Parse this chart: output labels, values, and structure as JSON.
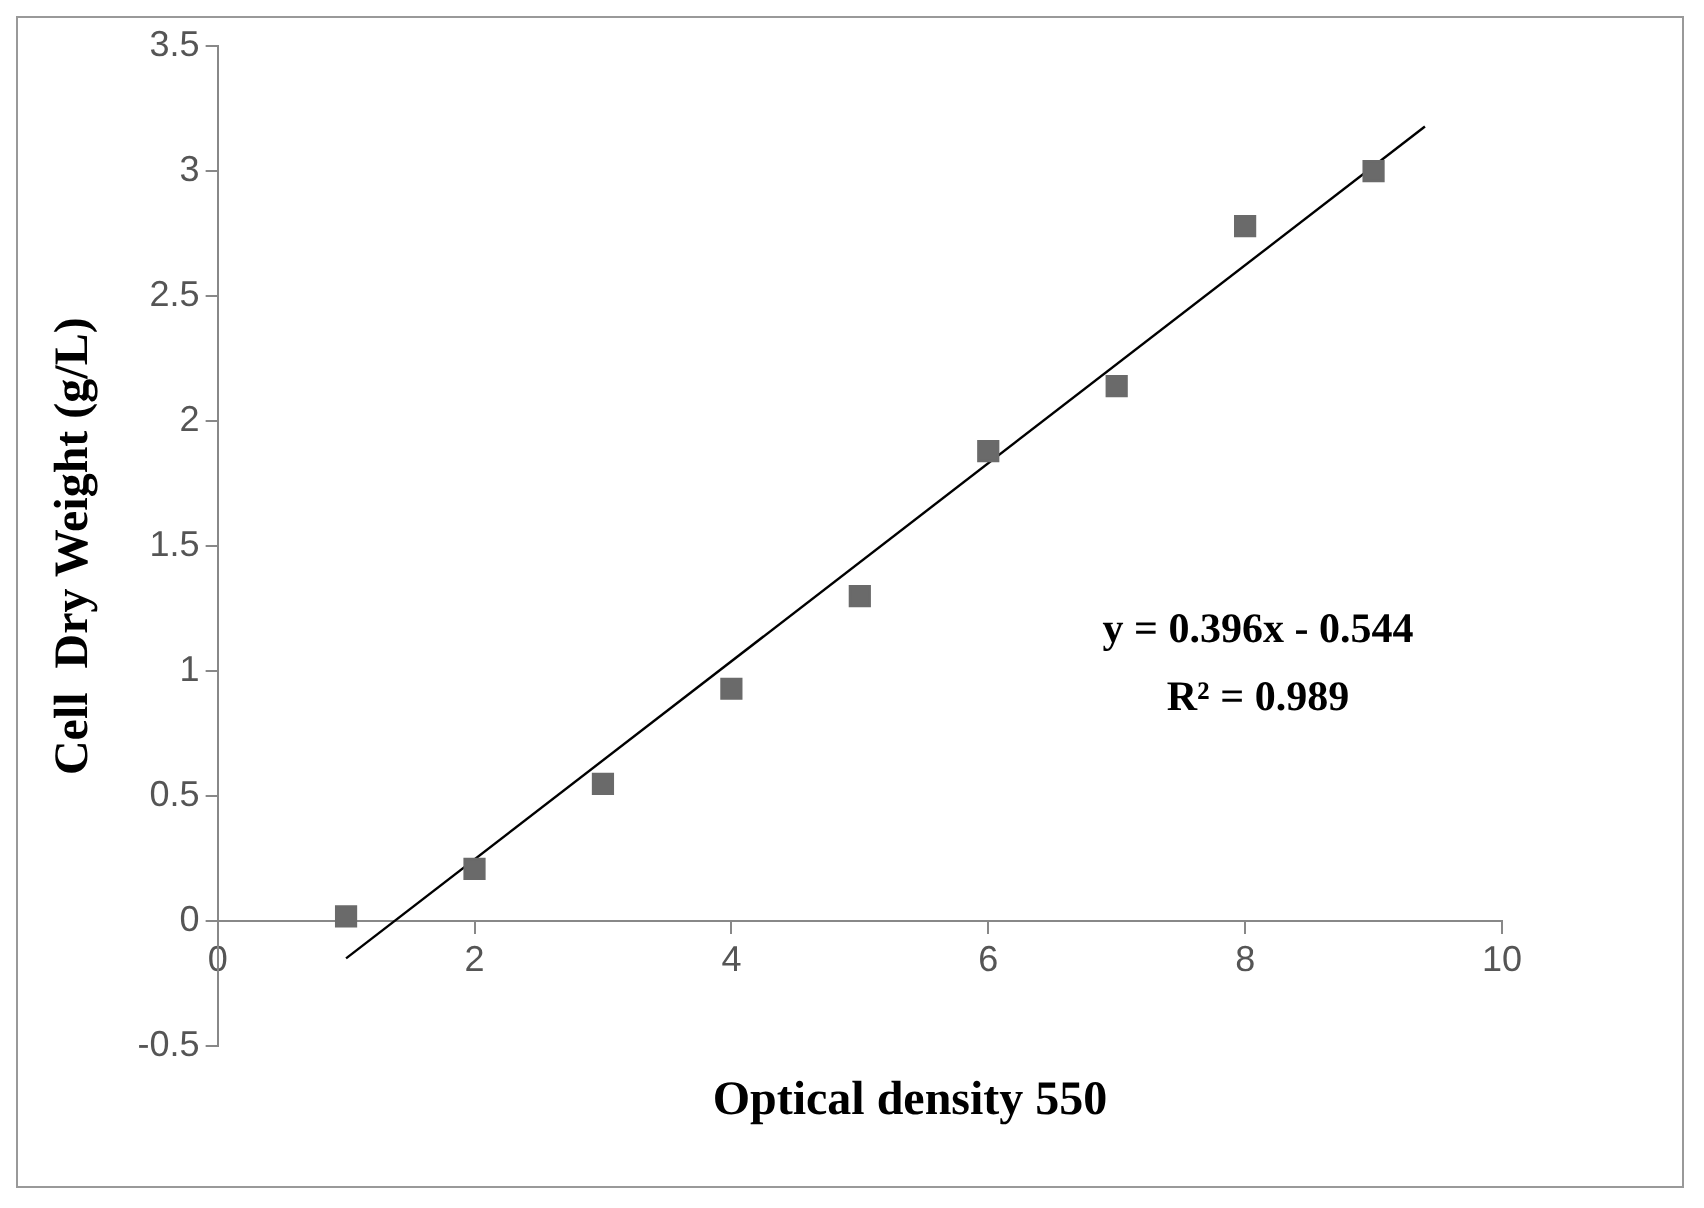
{
  "chart_data": {
    "type": "scatter",
    "xlabel": "Optical density 550",
    "ylabel": "Cell  Dry Weight (g/L)",
    "xlim": [
      0,
      10
    ],
    "xticks": [
      0,
      2,
      4,
      6,
      8,
      10
    ],
    "ylim": [
      -0.5,
      3.5
    ],
    "yticks": [
      -0.5,
      0,
      0.5,
      1,
      1.5,
      2,
      2.5,
      3,
      3.5
    ],
    "grid": false,
    "legend": false,
    "marker": "square",
    "series": [
      {
        "color": "#6a6a6a",
        "x": [
          1,
          2,
          3,
          4,
          5,
          6,
          7,
          8,
          9
        ],
        "values": [
          0.02,
          0.21,
          0.55,
          0.93,
          1.3,
          1.88,
          2.14,
          2.78,
          3.0
        ]
      },
      {
        "type": "line",
        "color": "#000000",
        "marker": "none",
        "x": [
          1,
          9.4
        ],
        "values": [
          -0.148,
          3.178
        ]
      }
    ],
    "annotations": [
      "y = 0.396x - 0.544",
      "R² = 0.989"
    ]
  }
}
